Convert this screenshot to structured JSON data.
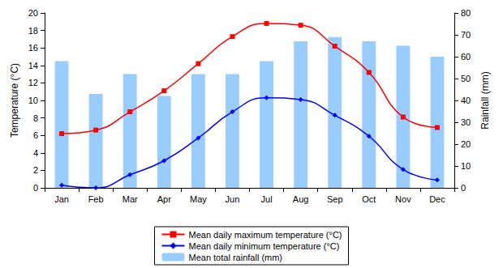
{
  "chart_data": {
    "type": "bar",
    "categories": [
      "Jan",
      "Feb",
      "Mar",
      "Apr",
      "May",
      "Jun",
      "Jul",
      "Aug",
      "Sep",
      "Oct",
      "Nov",
      "Dec"
    ],
    "y_label": "Temperature (°C)",
    "y2_label": "Rainfall (mm)",
    "ylim": [
      0,
      20
    ],
    "yticks": [
      0,
      2,
      4,
      6,
      8,
      10,
      12,
      14,
      16,
      18,
      20
    ],
    "y2lim": [
      0,
      80
    ],
    "y2ticks": [
      0,
      10,
      20,
      30,
      40,
      50,
      60,
      70,
      80
    ],
    "grid": false,
    "legend": "bottom",
    "series": [
      {
        "name": "Mean daily maximum temperature (°C)",
        "type": "line",
        "color": "#ff0000",
        "marker": "square",
        "values": [
          6.2,
          6.6,
          8.7,
          11.1,
          14.2,
          17.3,
          18.8,
          18.6,
          16.2,
          13.2,
          8.1,
          6.9
        ]
      },
      {
        "name": "Mean daily minimum temperature (°C)",
        "type": "line",
        "color": "#0000ff",
        "marker": "diamond",
        "values": [
          0.3,
          0.0,
          1.5,
          3.1,
          5.7,
          8.7,
          10.3,
          10.1,
          8.3,
          5.9,
          2.1,
          0.9
        ]
      },
      {
        "name": "Mean total rainfall (mm)",
        "type": "bar",
        "color": "#99ccff",
        "axis": "y2",
        "values": [
          58,
          43,
          52,
          42,
          52,
          52,
          58,
          67,
          69,
          67,
          65,
          60
        ]
      }
    ]
  }
}
